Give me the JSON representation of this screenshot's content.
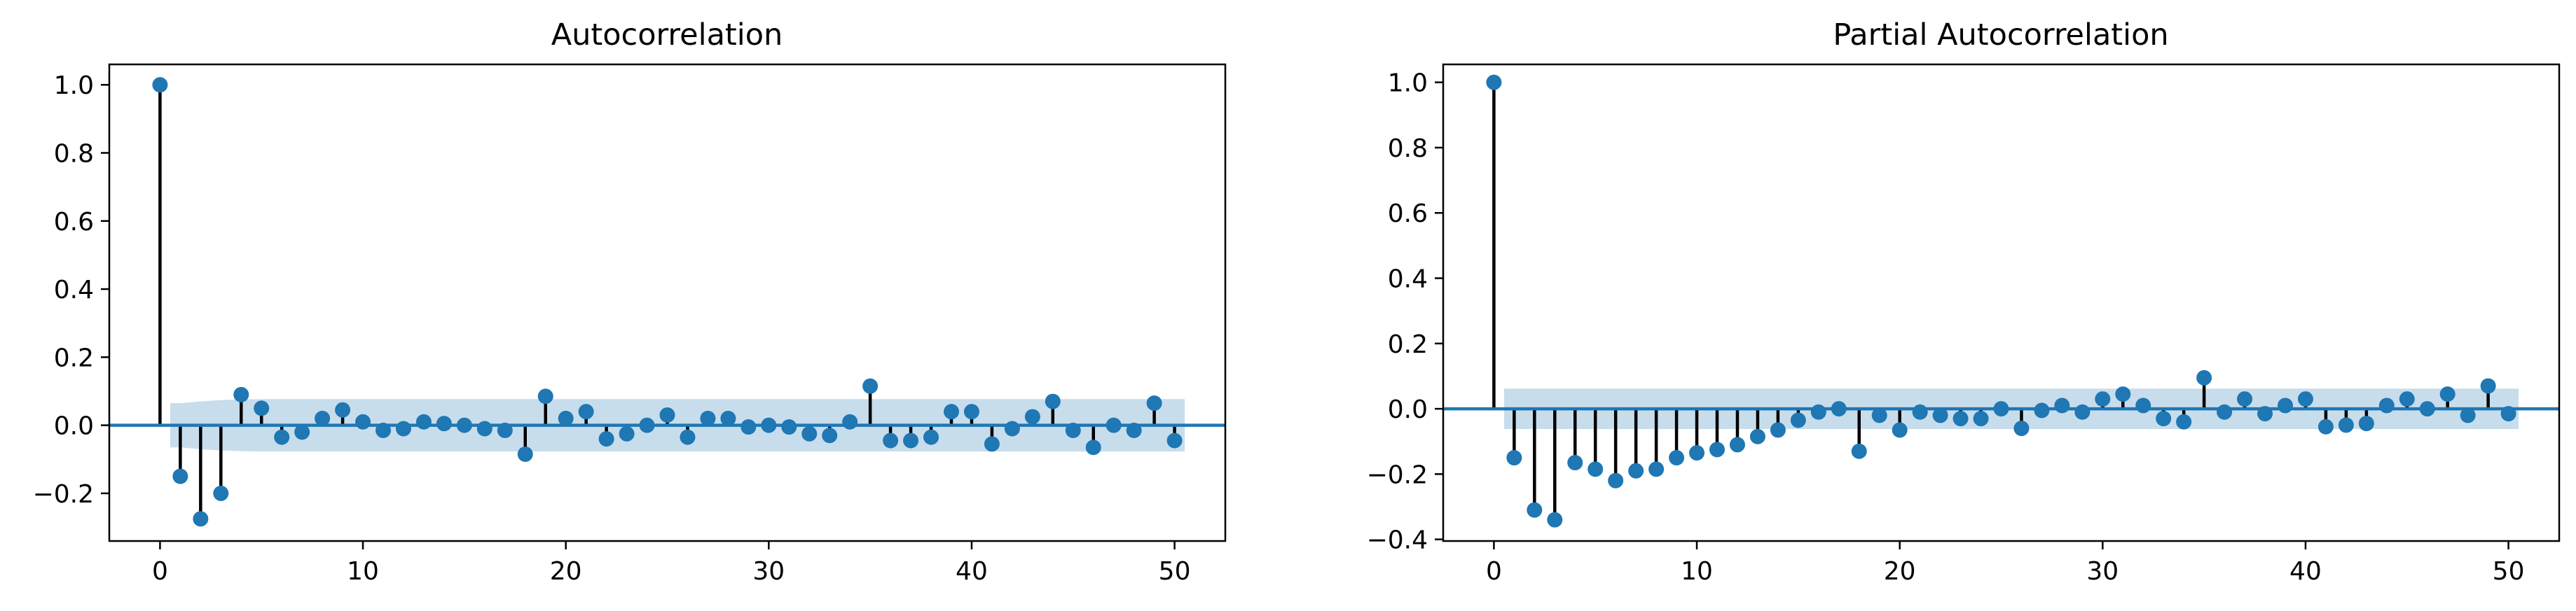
{
  "figure": {
    "background": "#ffffff"
  },
  "chart_data": [
    {
      "type": "stem",
      "title": "Autocorrelation",
      "xlabel": "",
      "ylabel": "",
      "xlim": [
        -2.5,
        52.5
      ],
      "ylim": [
        -0.34,
        1.06
      ],
      "xticks": [
        0,
        10,
        20,
        30,
        40,
        50
      ],
      "xtick_labels": [
        "0",
        "10",
        "20",
        "30",
        "40",
        "50"
      ],
      "yticks": [
        -0.2,
        0.0,
        0.2,
        0.4,
        0.6,
        0.8,
        1.0
      ],
      "ytick_labels": [
        "−0.2",
        "0.0",
        "0.2",
        "0.4",
        "0.6",
        "0.8",
        "1.0"
      ],
      "colors": {
        "marker": "#1f77b4",
        "stem": "#000000",
        "baseline": "#1f77b4",
        "confint": "#1f77b4"
      },
      "x": [
        0,
        1,
        2,
        3,
        4,
        5,
        6,
        7,
        8,
        9,
        10,
        11,
        12,
        13,
        14,
        15,
        16,
        17,
        18,
        19,
        20,
        21,
        22,
        23,
        24,
        25,
        26,
        27,
        28,
        29,
        30,
        31,
        32,
        33,
        34,
        35,
        36,
        37,
        38,
        39,
        40,
        41,
        42,
        43,
        44,
        45,
        46,
        47,
        48,
        49,
        50
      ],
      "values": [
        1.0,
        -0.15,
        -0.275,
        -0.2,
        0.09,
        0.05,
        -0.035,
        -0.02,
        0.02,
        0.045,
        0.01,
        -0.015,
        -0.01,
        0.01,
        0.005,
        0.0,
        -0.01,
        -0.015,
        -0.085,
        0.085,
        0.02,
        0.04,
        -0.04,
        -0.025,
        0.0,
        0.03,
        -0.035,
        0.02,
        0.02,
        -0.005,
        0.0,
        -0.005,
        -0.025,
        -0.03,
        0.01,
        0.115,
        -0.045,
        -0.045,
        -0.035,
        0.04,
        0.04,
        -0.055,
        -0.01,
        0.025,
        0.07,
        -0.015,
        -0.065,
        0.0,
        -0.015,
        0.065,
        -0.045
      ],
      "confint_x": [
        0.5,
        1,
        2,
        3,
        4,
        5,
        10,
        20,
        30,
        40,
        50,
        50.5
      ],
      "confint_upper": [
        0.065,
        0.065,
        0.07,
        0.074,
        0.076,
        0.077,
        0.077,
        0.077,
        0.077,
        0.077,
        0.077,
        0.077
      ]
    },
    {
      "type": "stem",
      "title": "Partial Autocorrelation",
      "xlabel": "",
      "ylabel": "",
      "xlim": [
        -2.5,
        52.5
      ],
      "ylim": [
        -0.405,
        1.055
      ],
      "xticks": [
        0,
        10,
        20,
        30,
        40,
        50
      ],
      "xtick_labels": [
        "0",
        "10",
        "20",
        "30",
        "40",
        "50"
      ],
      "yticks": [
        -0.4,
        -0.2,
        0.0,
        0.2,
        0.4,
        0.6,
        0.8,
        1.0
      ],
      "ytick_labels": [
        "−0.4",
        "−0.2",
        "0.0",
        "0.2",
        "0.4",
        "0.6",
        "0.8",
        "1.0"
      ],
      "colors": {
        "marker": "#1f77b4",
        "stem": "#000000",
        "baseline": "#1f77b4",
        "confint": "#1f77b4"
      },
      "x": [
        0,
        1,
        2,
        3,
        4,
        5,
        6,
        7,
        8,
        9,
        10,
        11,
        12,
        13,
        14,
        15,
        16,
        17,
        18,
        19,
        20,
        21,
        22,
        23,
        24,
        25,
        26,
        27,
        28,
        29,
        30,
        31,
        32,
        33,
        34,
        35,
        36,
        37,
        38,
        39,
        40,
        41,
        42,
        43,
        44,
        45,
        46,
        47,
        48,
        49,
        50
      ],
      "values": [
        1.0,
        -0.15,
        -0.31,
        -0.34,
        -0.165,
        -0.185,
        -0.22,
        -0.19,
        -0.185,
        -0.15,
        -0.135,
        -0.125,
        -0.11,
        -0.085,
        -0.065,
        -0.035,
        -0.01,
        0.0,
        -0.13,
        -0.02,
        -0.065,
        -0.01,
        -0.02,
        -0.03,
        -0.03,
        0.0,
        -0.06,
        -0.005,
        0.01,
        -0.01,
        0.03,
        0.045,
        0.01,
        -0.03,
        -0.04,
        0.095,
        -0.01,
        0.03,
        -0.015,
        0.01,
        0.03,
        -0.055,
        -0.05,
        -0.045,
        0.01,
        0.03,
        0.0,
        0.045,
        -0.02,
        0.07,
        -0.015
      ],
      "confint_x": [
        0.5,
        50.5
      ],
      "confint_upper": [
        0.062,
        0.062
      ]
    }
  ]
}
